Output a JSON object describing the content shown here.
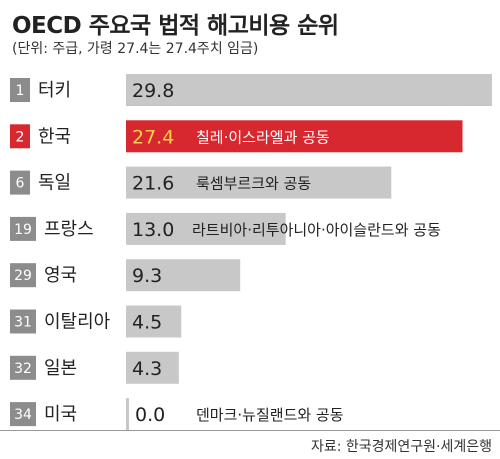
{
  "header": {
    "title": "OECD 주요국 법적 해고비용 순위",
    "subtitle": "(단위: 주급, 가령 27.4는 27.4주치 임금)"
  },
  "source": "자료: 한국경제연구원·세계은행",
  "colors": {
    "bar": "#c8c8c8",
    "highlight_bar": "#d7282f",
    "rank_badge": "#8c8c8c",
    "highlight_badge": "#d7282f",
    "value_text": "#222222",
    "highlight_value_text": "#ffd24a",
    "highlight_note_text": "#ffffff"
  },
  "chart_data": {
    "type": "bar",
    "orientation": "horizontal",
    "xlim": [
      0,
      29.8
    ],
    "grid": false,
    "legend": "none",
    "rows": [
      {
        "rank": "1",
        "country": "터키",
        "value": 29.8,
        "value_label": "29.8",
        "note": "",
        "highlight": false
      },
      {
        "rank": "2",
        "country": "한국",
        "value": 27.4,
        "value_label": "27.4",
        "note": "칠레·이스라엘과 공동",
        "highlight": true
      },
      {
        "rank": "6",
        "country": "독일",
        "value": 21.6,
        "value_label": "21.6",
        "note": "룩셈부르크와 공동",
        "highlight": false
      },
      {
        "rank": "19",
        "country": "프랑스",
        "value": 13.0,
        "value_label": "13.0",
        "note": "라트비아·리투아니아·아이슬란드와 공동",
        "highlight": false
      },
      {
        "rank": "29",
        "country": "영국",
        "value": 9.3,
        "value_label": "9.3",
        "note": "",
        "highlight": false
      },
      {
        "rank": "31",
        "country": "이탈리아",
        "value": 4.5,
        "value_label": "4.5",
        "note": "",
        "highlight": false
      },
      {
        "rank": "32",
        "country": "일본",
        "value": 4.3,
        "value_label": "4.3",
        "note": "",
        "highlight": false
      },
      {
        "rank": "34",
        "country": "미국",
        "value": 0.0,
        "value_label": "0.0",
        "note": "덴마크·뉴질랜드와 공동",
        "highlight": false
      }
    ]
  }
}
